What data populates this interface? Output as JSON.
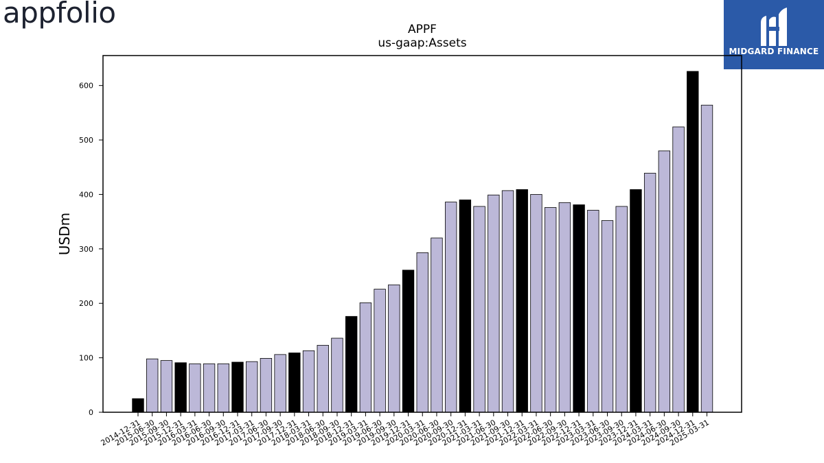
{
  "brand": {
    "logo_text": "appfolio",
    "badge_text": "MIDGARD FINANCE"
  },
  "colors": {
    "highlight": "#000000",
    "bar": "#bcb8d8",
    "badge": "#2b5aa8"
  },
  "chart_data": {
    "type": "bar",
    "title": "APPF",
    "subtitle": "us-gaap:Assets",
    "ylabel": "USDm",
    "xlabel": "",
    "ylim": [
      0,
      655
    ],
    "yticks": [
      0,
      100,
      200,
      300,
      400,
      500,
      600
    ],
    "grid": false,
    "categories": [
      "2014-12-31",
      "2015-06-30",
      "2015-09-30",
      "2015-12-31",
      "2016-03-31",
      "2016-06-30",
      "2016-09-30",
      "2016-12-31",
      "2017-03-31",
      "2017-06-30",
      "2017-09-30",
      "2017-12-31",
      "2018-03-31",
      "2018-06-30",
      "2018-09-30",
      "2018-12-31",
      "2019-03-31",
      "2019-06-30",
      "2019-09-30",
      "2019-12-31",
      "2020-03-31",
      "2020-06-30",
      "2020-09-30",
      "2020-12-31",
      "2021-03-31",
      "2021-06-30",
      "2021-09-30",
      "2021-12-31",
      "2022-03-31",
      "2022-06-30",
      "2022-09-30",
      "2022-12-31",
      "2023-03-31",
      "2023-06-30",
      "2023-09-30",
      "2023-12-31",
      "2024-03-31",
      "2024-06-30",
      "2024-09-30",
      "2024-12-31",
      "2025-03-31"
    ],
    "values": [
      25,
      98,
      95,
      91,
      89,
      89,
      89,
      92,
      93,
      99,
      106,
      109,
      113,
      123,
      136,
      176,
      201,
      226,
      234,
      261,
      293,
      320,
      386,
      390,
      378,
      399,
      407,
      409,
      400,
      376,
      385,
      381,
      371,
      352,
      378,
      409,
      439,
      480,
      524,
      626,
      564
    ],
    "highlighted": [
      true,
      false,
      false,
      true,
      false,
      false,
      false,
      true,
      false,
      false,
      false,
      true,
      false,
      false,
      false,
      true,
      false,
      false,
      false,
      true,
      false,
      false,
      false,
      true,
      false,
      false,
      false,
      true,
      false,
      false,
      false,
      true,
      false,
      false,
      false,
      true,
      false,
      false,
      false,
      true,
      false
    ]
  }
}
